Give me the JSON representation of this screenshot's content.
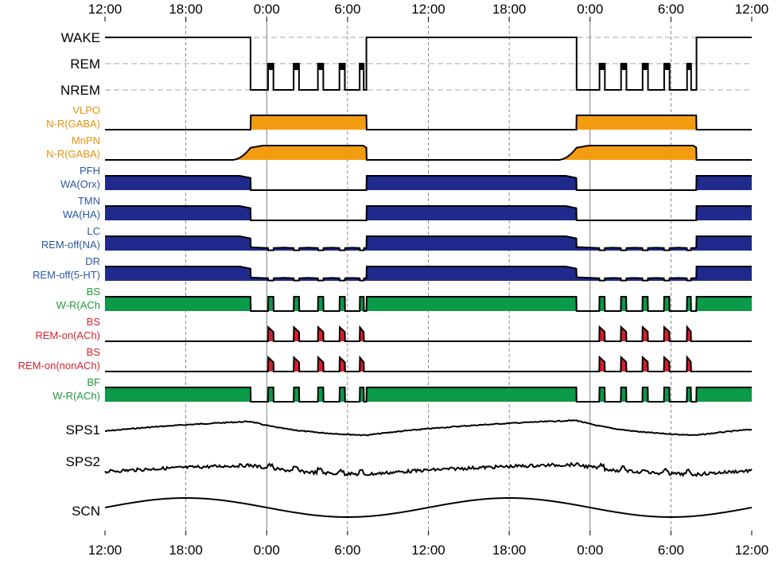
{
  "chart_data": {
    "type": "line",
    "x_unit": "hours",
    "x_range": [
      12,
      60
    ],
    "x_ticks": [
      {
        "t": 12,
        "label": "12:00"
      },
      {
        "t": 18,
        "label": "18:00"
      },
      {
        "t": 24,
        "label": "0:00"
      },
      {
        "t": 30,
        "label": "6:00"
      },
      {
        "t": 36,
        "label": "12:00"
      },
      {
        "t": 42,
        "label": "18:00"
      },
      {
        "t": 48,
        "label": "0:00"
      },
      {
        "t": 54,
        "label": "6:00"
      },
      {
        "t": 60,
        "label": "12:00"
      }
    ],
    "sleep_periods": [
      {
        "sleep_onset": 22.8,
        "wake": 31.4,
        "rem_episodes": [
          [
            24.1,
            24.5
          ],
          [
            26.0,
            26.4
          ],
          [
            27.8,
            28.2
          ],
          [
            29.4,
            29.8
          ],
          [
            30.9,
            31.2
          ]
        ]
      },
      {
        "sleep_onset": 47.0,
        "wake": 55.9,
        "rem_episodes": [
          [
            48.7,
            49.1
          ],
          [
            50.3,
            50.7
          ],
          [
            51.9,
            52.3
          ],
          [
            53.5,
            53.9
          ],
          [
            55.2,
            55.5
          ]
        ]
      }
    ],
    "hypnogram": {
      "levels": [
        "WAKE",
        "REM",
        "NREM"
      ]
    },
    "rows": [
      {
        "name": "VLPO",
        "sub": "N-R(GABA)",
        "label_color": "#e8900a",
        "fill": "#f39c12",
        "pattern": "sleep",
        "shape": "sharp"
      },
      {
        "name": "MnPN",
        "sub": "N-R(GABA)",
        "label_color": "#e8900a",
        "fill": "#f39c12",
        "pattern": "sleep",
        "shape": "smooth"
      },
      {
        "name": "PFH",
        "sub": "WA(Orx)",
        "label_color": "#2b57a6",
        "fill": "#1f2a8c",
        "pattern": "wake",
        "shape": "sloped"
      },
      {
        "name": "TMN",
        "sub": "WA(HA)",
        "label_color": "#2b57a6",
        "fill": "#1f2a8c",
        "pattern": "wake",
        "shape": "sloped"
      },
      {
        "name": "LC",
        "sub": "REM-off(NA)",
        "label_color": "#2b57a6",
        "fill": "#1f2a8c",
        "pattern": "remoff",
        "shape": "sloped"
      },
      {
        "name": "DR",
        "sub": "REM-off(5-HT)",
        "label_color": "#2b57a6",
        "fill": "#1f2a8c",
        "pattern": "remoff",
        "shape": "sloped"
      },
      {
        "name": "BS",
        "sub": "W-R(ACh",
        "label_color": "#1e9a3c",
        "fill": "#0a9a48",
        "pattern": "wr",
        "shape": "sharp"
      },
      {
        "name": "BS",
        "sub": "REM-on(ACh)",
        "label_color": "#d81e2c",
        "fill": "#d81e2c",
        "pattern": "remon",
        "shape": "sharp"
      },
      {
        "name": "BS",
        "sub": "REM-on(nonACh)",
        "label_color": "#d81e2c",
        "fill": "#d81e2c",
        "pattern": "remon",
        "shape": "sharp"
      },
      {
        "name": "BF",
        "sub": "W-R(ACh)",
        "label_color": "#1e9a3c",
        "fill": "#0a9a48",
        "pattern": "wr",
        "shape": "sharp"
      }
    ],
    "signals": [
      {
        "name": "SPS1",
        "kind": "homeostatic",
        "min": 0.0,
        "max": 1.0
      },
      {
        "name": "SPS2",
        "kind": "homeostatic_noisy",
        "min": 0.0,
        "max": 1.0
      },
      {
        "name": "SCN",
        "kind": "circadian",
        "period_hours": 24,
        "peak_hour": 18,
        "min": -1.0,
        "max": 1.0
      }
    ],
    "grid": {
      "major_vertical_at": [
        24,
        48
      ],
      "dashed_vertical_at": [
        18,
        30,
        36,
        42,
        54
      ]
    }
  }
}
